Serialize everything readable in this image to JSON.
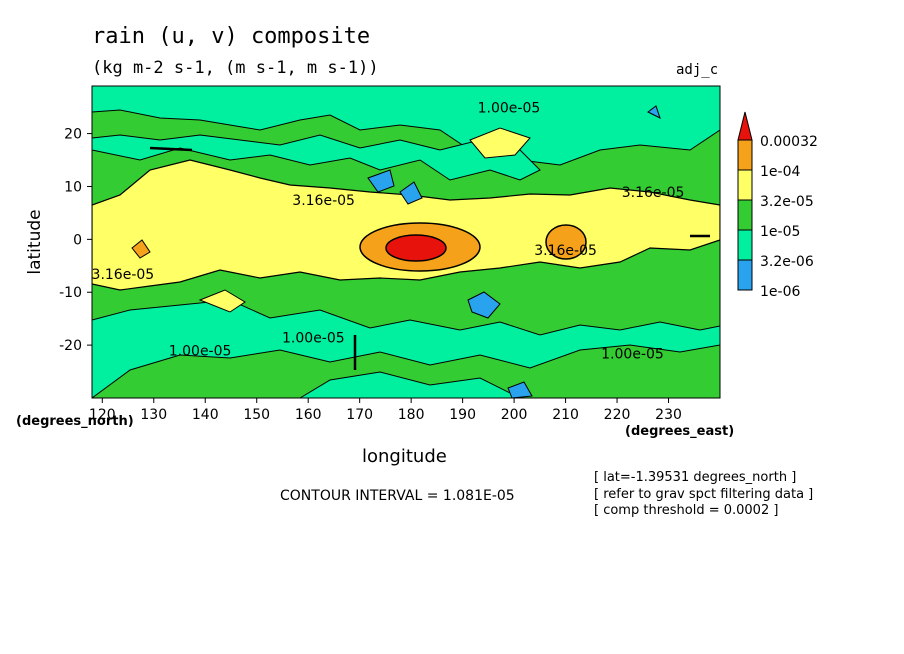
{
  "chart_data": {
    "type": "heatmap",
    "title": "rain (u, v) composite",
    "subtitle": "(kg m-2 s-1, (m s-1, m s-1))",
    "tag": "adj_c",
    "xlabel": "longitude",
    "ylabel": "latitude",
    "x_unit_label": "(degrees_east)",
    "y_unit_label": "(degrees_north)",
    "xlim": [
      118,
      240
    ],
    "ylim": [
      -30,
      29
    ],
    "x_ticks": [
      120,
      130,
      140,
      150,
      160,
      170,
      180,
      190,
      200,
      210,
      220,
      230
    ],
    "y_ticks": [
      20,
      10,
      0,
      -10,
      -20
    ],
    "contour_interval": "CONTOUR INTERVAL = 1.081E-05",
    "notes": [
      "[ lat=-1.39531 degrees_north ]",
      "[ refer to grav spct filtering data ]",
      "[ comp threshold = 0.0002 ]"
    ],
    "legend": {
      "levels": [
        "0.00032",
        "1e-04",
        "3.2e-05",
        "1e-05",
        "3.2e-06",
        "1e-06"
      ],
      "colors": [
        "#e8120c",
        "#f5a11a",
        "#ffff66",
        "#33cc33",
        "#00f0a0",
        "#2aa3ee"
      ]
    },
    "contour_labels": [
      {
        "text": "1.00e-05",
        "lon": 199,
        "lat": 24
      },
      {
        "text": "3.16e-05",
        "lon": 163,
        "lat": 6.5
      },
      {
        "text": "3.16e-05",
        "lon": 227,
        "lat": 8
      },
      {
        "text": "3.16e-05",
        "lon": 210,
        "lat": -3
      },
      {
        "text": "3.16e-05",
        "lon": 124,
        "lat": -7.5
      },
      {
        "text": "1.00e-05",
        "lon": 161,
        "lat": -19.5
      },
      {
        "text": "1.00e-05",
        "lon": 139,
        "lat": -22
      },
      {
        "text": "1.00e-05",
        "lon": 223,
        "lat": -22.5
      }
    ]
  }
}
